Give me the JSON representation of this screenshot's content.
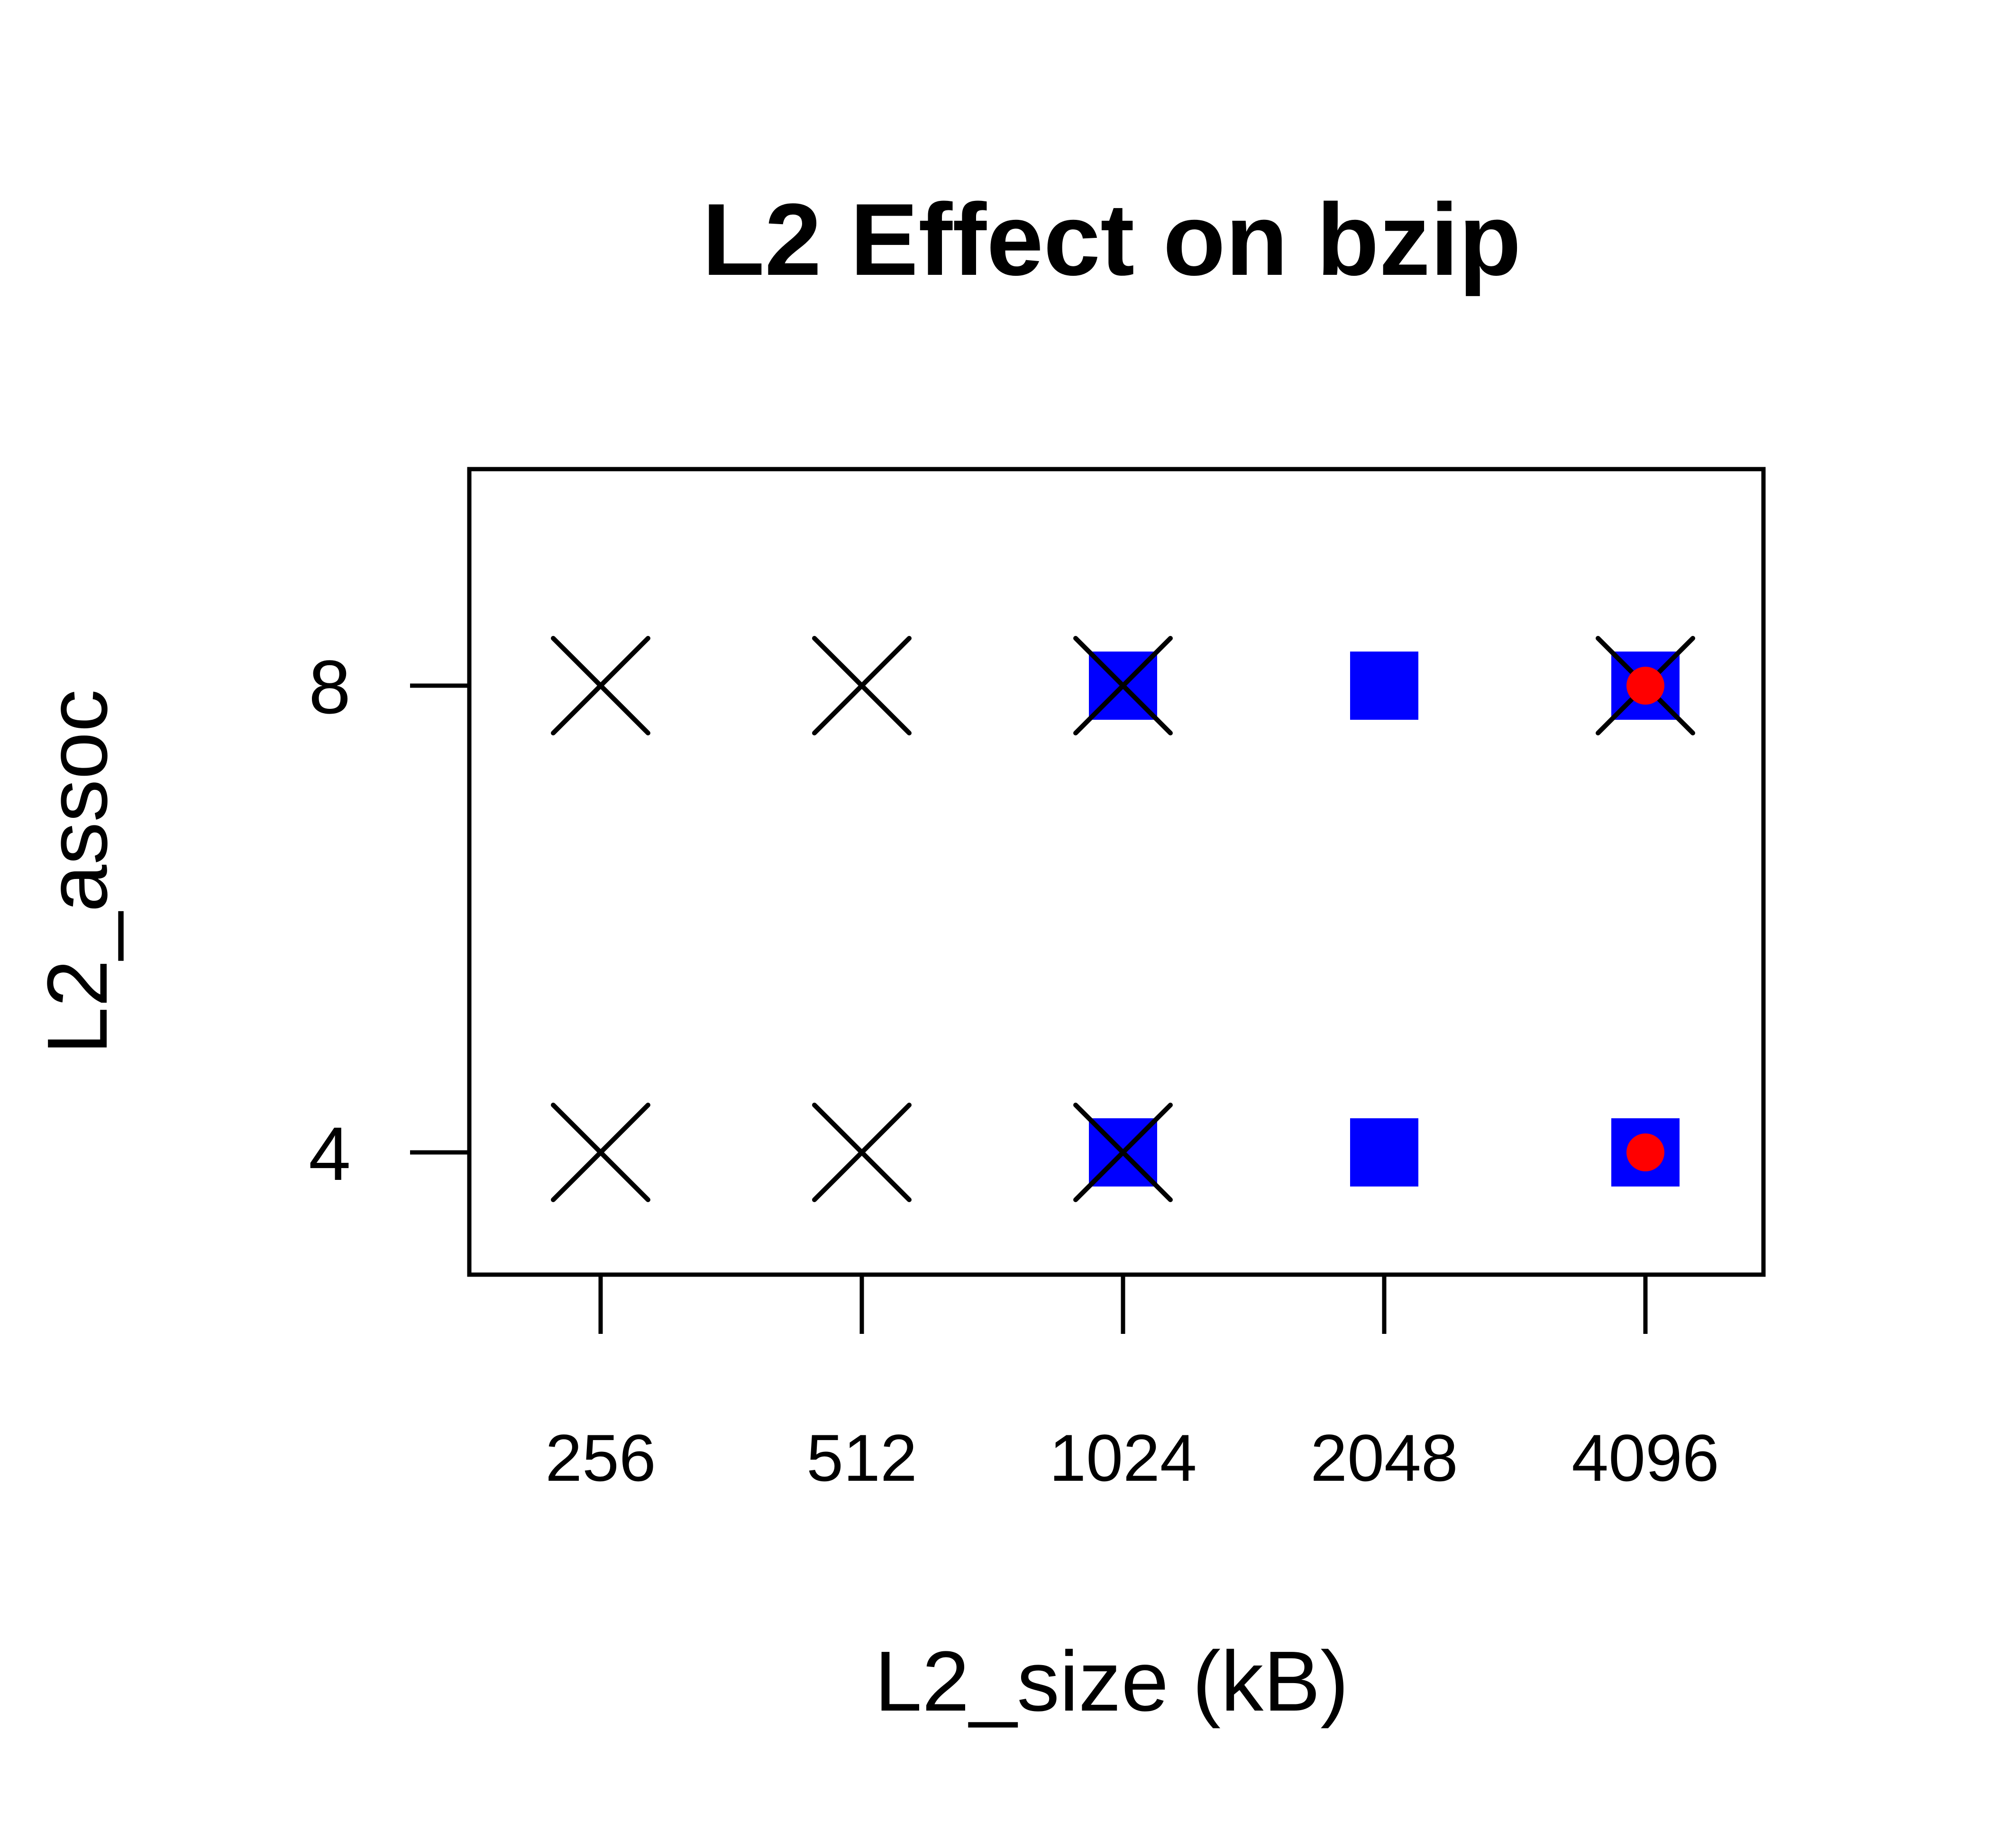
{
  "chart_data": {
    "type": "scatter",
    "title": "L2 Effect on bzip",
    "xlabel": "L2_size (kB)",
    "ylabel": "L2_assoc",
    "x_categories": [
      "256",
      "512",
      "1024",
      "2048",
      "4096"
    ],
    "y_ticks": [
      "4",
      "8"
    ],
    "ylim": [
      3.5,
      9.5
    ],
    "grid": false,
    "colors": {
      "square": "#0000ff",
      "circle": "#ff0000",
      "cross": "#000000"
    },
    "series": [
      {
        "marker": "cross",
        "points": [
          {
            "x": "256",
            "y": 8
          },
          {
            "x": "512",
            "y": 8
          },
          {
            "x": "1024",
            "y": 8
          },
          {
            "x": "4096",
            "y": 8
          },
          {
            "x": "256",
            "y": 4
          },
          {
            "x": "512",
            "y": 4
          },
          {
            "x": "1024",
            "y": 4
          }
        ]
      },
      {
        "marker": "square",
        "points": [
          {
            "x": "1024",
            "y": 8
          },
          {
            "x": "2048",
            "y": 8
          },
          {
            "x": "4096",
            "y": 8
          },
          {
            "x": "1024",
            "y": 4
          },
          {
            "x": "2048",
            "y": 4
          },
          {
            "x": "4096",
            "y": 4
          }
        ]
      },
      {
        "marker": "circle",
        "points": [
          {
            "x": "4096",
            "y": 8
          },
          {
            "x": "4096",
            "y": 4
          }
        ]
      }
    ]
  }
}
